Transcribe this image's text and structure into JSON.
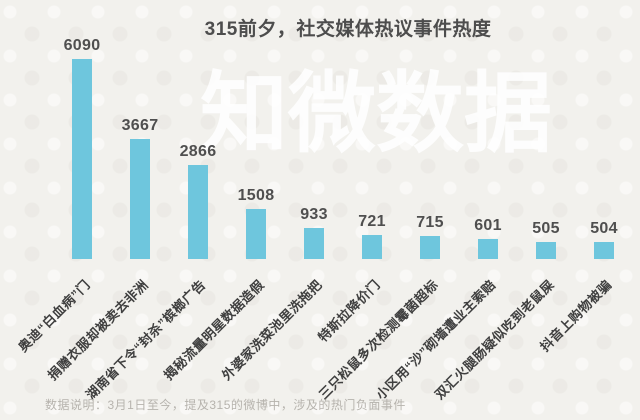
{
  "title": "315前夕，社交媒体热议事件热度",
  "watermark": "知微数据",
  "footnote": "数据说明：3月1日至今，提及315的微博中，涉及的热门负面事件",
  "colors": {
    "background": "#f2f1ed",
    "bar": "#6ec6dd",
    "title_text": "#4d4d4d",
    "value_text": "#4f4f4f",
    "category_text": "#3f3f3f",
    "note_text": "#b6b3ad",
    "watermark_text": "rgba(255,255,255,0.85)"
  },
  "chart_data": {
    "type": "bar",
    "title": "315前夕，社交媒体热议事件热度",
    "categories": [
      "奥迪“白血病”门",
      "捐赠衣服却被卖去非洲",
      "湖南省下令“封杀”槟榔广告",
      "揭秘流量明星数据造假",
      "外婆家洗菜池里洗拖把",
      "特斯拉降价门",
      "三只松鼠多次检测霉菌超标",
      "小区用“沙”砌墙遭业主索赔",
      "双汇火腿肠疑似吃到老鼠屎",
      "抖音上购物被骗"
    ],
    "values": [
      6090,
      3667,
      2866,
      1508,
      933,
      721,
      715,
      601,
      505,
      504
    ],
    "xlabel": "",
    "ylabel": "",
    "ylim": [
      0,
      6500
    ],
    "bar_color": "#6ec6dd",
    "value_labels_shown": true,
    "category_label_rotation_deg": 45,
    "gridlines": false,
    "legend": "none",
    "note": "数据说明：3月1日至今，提及315的微博中，涉及的热门负面事件",
    "watermark": "知微数据"
  }
}
